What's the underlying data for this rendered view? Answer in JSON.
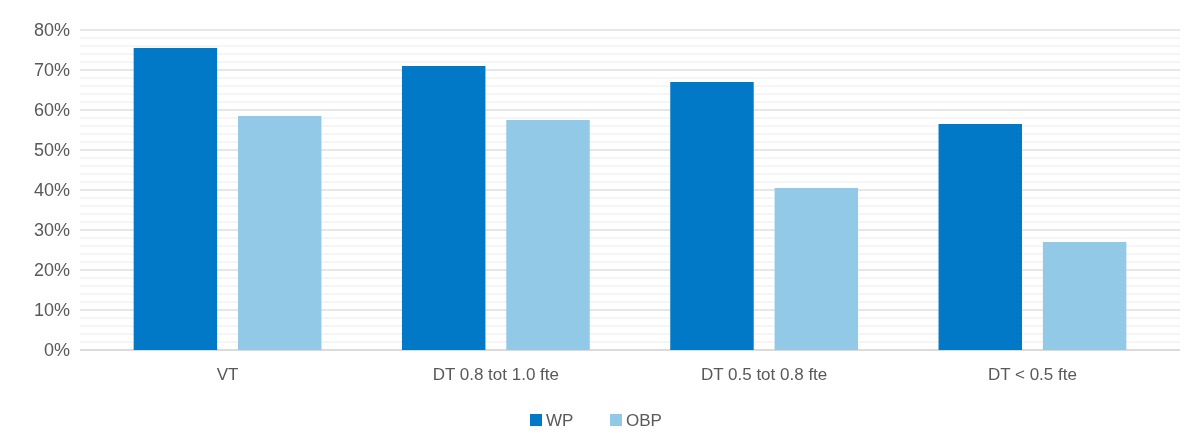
{
  "chart_data": {
    "type": "bar",
    "categories": [
      "VT",
      "DT 0.8 tot 1.0 fte",
      "DT 0.5 tot 0.8 fte",
      "DT < 0.5 fte"
    ],
    "series": [
      {
        "name": "WP",
        "color": "#0179c7",
        "values": [
          75.5,
          71,
          67,
          56.5
        ]
      },
      {
        "name": "OBP",
        "color": "#92c9e6",
        "values": [
          58.5,
          57.5,
          40.5,
          27
        ]
      }
    ],
    "ylim": [
      0,
      80
    ],
    "yticks": [
      {
        "value": 0,
        "label": "0%"
      },
      {
        "value": 2,
        "label": null
      },
      {
        "value": 4,
        "label": null
      },
      {
        "value": 6,
        "label": null
      },
      {
        "value": 8,
        "label": null
      },
      {
        "value": 10,
        "label": "10%"
      },
      {
        "value": 12,
        "label": null
      },
      {
        "value": 14,
        "label": null
      },
      {
        "value": 16,
        "label": null
      },
      {
        "value": 18,
        "label": null
      },
      {
        "value": 20,
        "label": "20%"
      },
      {
        "value": 22,
        "label": null
      },
      {
        "value": 24,
        "label": null
      },
      {
        "value": 26,
        "label": null
      },
      {
        "value": 28,
        "label": null
      },
      {
        "value": 30,
        "label": "30%"
      },
      {
        "value": 32,
        "label": null
      },
      {
        "value": 34,
        "label": null
      },
      {
        "value": 36,
        "label": null
      },
      {
        "value": 38,
        "label": null
      },
      {
        "value": 40,
        "label": "40%"
      },
      {
        "value": 42,
        "label": null
      },
      {
        "value": 44,
        "label": null
      },
      {
        "value": 46,
        "label": null
      },
      {
        "value": 48,
        "label": null
      },
      {
        "value": 50,
        "label": "50%"
      },
      {
        "value": 52,
        "label": null
      },
      {
        "value": 54,
        "label": null
      },
      {
        "value": 56,
        "label": null
      },
      {
        "value": 58,
        "label": null
      },
      {
        "value": 60,
        "label": "60%"
      },
      {
        "value": 62,
        "label": null
      },
      {
        "value": 64,
        "label": null
      },
      {
        "value": 66,
        "label": null
      },
      {
        "value": 68,
        "label": null
      },
      {
        "value": 70,
        "label": "70%"
      },
      {
        "value": 72,
        "label": null
      },
      {
        "value": 74,
        "label": null
      },
      {
        "value": 76,
        "label": null
      },
      {
        "value": 78,
        "label": null
      },
      {
        "value": 80,
        "label": "80%"
      }
    ],
    "grid": "y",
    "legend": "bottom"
  }
}
